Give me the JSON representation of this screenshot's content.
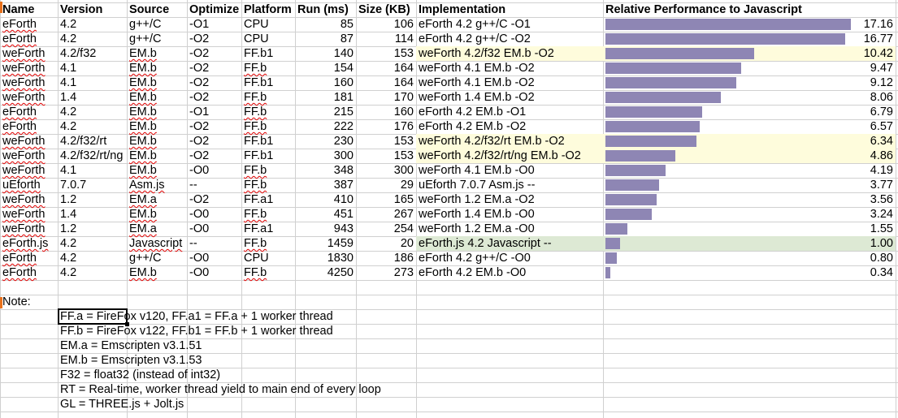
{
  "headers": {
    "name": "Name",
    "version": "Version",
    "source": "Source",
    "optimize": "Optimize",
    "platform": "Platform",
    "run": "Run (ms)",
    "size": "Size (KB)",
    "implementation": "Implementation",
    "relative": "Relative Performance to Javascript"
  },
  "rows": [
    {
      "name": "eForth",
      "version": "4.2",
      "source": "g++/C",
      "optimize": "-O1",
      "platform": "CPU",
      "run": "85",
      "size": "106",
      "impl": "eForth 4.2 g++/C -O1",
      "rel": "17.16",
      "rel_value": 17.16,
      "hl": ""
    },
    {
      "name": "eForth",
      "version": "4.2",
      "source": "g++/C",
      "optimize": "-O2",
      "platform": "CPU",
      "run": "87",
      "size": "114",
      "impl": "eForth 4.2 g++/C -O2",
      "rel": "16.77",
      "rel_value": 16.77,
      "hl": ""
    },
    {
      "name": "weForth",
      "version": "4.2/f32",
      "source": "EM.b",
      "optimize": "-O2",
      "platform": "FF.b1",
      "run": "140",
      "size": "153",
      "impl": "weForth 4.2/f32 EM.b -O2",
      "rel": "10.42",
      "rel_value": 10.42,
      "hl": "yellow"
    },
    {
      "name": "weForth",
      "version": "4.1",
      "source": "EM.b",
      "optimize": "-O2",
      "platform": "FF.b",
      "run": "154",
      "size": "164",
      "impl": "weForth 4.1 EM.b -O2",
      "rel": "9.47",
      "rel_value": 9.47,
      "hl": ""
    },
    {
      "name": "weForth",
      "version": "4.1",
      "source": "EM.b",
      "optimize": "-O2",
      "platform": "FF.b1",
      "run": "160",
      "size": "164",
      "impl": "weForth 4.1 EM.b -O2",
      "rel": "9.12",
      "rel_value": 9.12,
      "hl": ""
    },
    {
      "name": "weForth",
      "version": "1.4",
      "source": "EM.b",
      "optimize": "-O2",
      "platform": "FF.b",
      "run": "181",
      "size": "170",
      "impl": "weForth 1.4 EM.b -O2",
      "rel": "8.06",
      "rel_value": 8.06,
      "hl": ""
    },
    {
      "name": "eForth",
      "version": "4.2",
      "source": "EM.b",
      "optimize": "-O1",
      "platform": "FF.b",
      "run": "215",
      "size": "160",
      "impl": "eForth 4.2 EM.b -O1",
      "rel": "6.79",
      "rel_value": 6.79,
      "hl": ""
    },
    {
      "name": "eForth",
      "version": "4.2",
      "source": "EM.b",
      "optimize": "-O2",
      "platform": "FF.b",
      "run": "222",
      "size": "176",
      "impl": "eForth 4.2 EM.b -O2",
      "rel": "6.57",
      "rel_value": 6.57,
      "hl": ""
    },
    {
      "name": "weForth",
      "version": "4.2/f32/rt",
      "source": "EM.b",
      "optimize": "-O2",
      "platform": "FF.b1",
      "run": "230",
      "size": "153",
      "impl": "weForth 4.2/f32/rt EM.b -O2",
      "rel": "6.34",
      "rel_value": 6.34,
      "hl": "yellow"
    },
    {
      "name": "weForth",
      "version": "4.2/f32/rt/ng",
      "source": "EM.b",
      "optimize": "-O2",
      "platform": "FF.b1",
      "run": "300",
      "size": "153",
      "impl": "weForth 4.2/f32/rt/ng EM.b -O2",
      "rel": "4.86",
      "rel_value": 4.86,
      "hl": "yellow"
    },
    {
      "name": "weForth",
      "version": "4.1",
      "source": "EM.b",
      "optimize": "-O0",
      "platform": "FF.b",
      "run": "348",
      "size": "300",
      "impl": "weForth 4.1 EM.b -O0",
      "rel": "4.19",
      "rel_value": 4.19,
      "hl": ""
    },
    {
      "name": "uEforth",
      "version": "7.0.7",
      "source": "Asm.js",
      "optimize": "--",
      "platform": "FF.b",
      "run": "387",
      "size": "29",
      "impl": "uEforth 7.0.7 Asm.js --",
      "rel": "3.77",
      "rel_value": 3.77,
      "hl": ""
    },
    {
      "name": "weForth",
      "version": "1.2",
      "source": "EM.a",
      "optimize": "-O2",
      "platform": "FF.a1",
      "run": "410",
      "size": "165",
      "impl": "weForth 1.2 EM.a -O2",
      "rel": "3.56",
      "rel_value": 3.56,
      "hl": ""
    },
    {
      "name": "weForth",
      "version": "1.4",
      "source": "EM.b",
      "optimize": "-O0",
      "platform": "FF.b",
      "run": "451",
      "size": "267",
      "impl": "weForth 1.4 EM.b -O0",
      "rel": "3.24",
      "rel_value": 3.24,
      "hl": ""
    },
    {
      "name": "weForth",
      "version": "1.2",
      "source": "EM.a",
      "optimize": "-O0",
      "platform": "FF.a1",
      "run": "943",
      "size": "254",
      "impl": "weForth 1.2 EM.a -O0",
      "rel": "1.55",
      "rel_value": 1.55,
      "hl": ""
    },
    {
      "name": "eForth.js",
      "version": "4.2",
      "source": "Javascript",
      "optimize": "--",
      "platform": "FF.b",
      "run": "1459",
      "size": "20",
      "impl": "eForth.js 4.2 Javascript --",
      "rel": "1.00",
      "rel_value": 1.0,
      "hl": "green"
    },
    {
      "name": "eForth",
      "version": "4.2",
      "source": "g++/C",
      "optimize": "-O0",
      "platform": "CPU",
      "run": "1830",
      "size": "186",
      "impl": "eForth 4.2 g++/C -O0",
      "rel": "0.80",
      "rel_value": 0.8,
      "hl": ""
    },
    {
      "name": "eForth",
      "version": "4.2",
      "source": "EM.b",
      "optimize": "-O0",
      "platform": "FF.b",
      "run": "4250",
      "size": "273",
      "impl": "eForth 4.2 EM.b -O0",
      "rel": "0.34",
      "rel_value": 0.34,
      "hl": ""
    }
  ],
  "note_label": "Note:",
  "notes": [
    "FF.a = FireFox v120, FF.a1 = FF.a + 1 worker thread",
    "FF.b = FireFox v122, FF.b1 = FF.b + 1 worker thread",
    "EM.a = Emscripten v3.1.51",
    "EM.b = Emscripten v3.1.53",
    "F32 = float32 (instead of int32)",
    "RT = Real-time, worker thread yield to main end of every loop",
    "GL = THREE.js + Jolt.js"
  ],
  "colors": {
    "bar": "#8e86b4",
    "highlight_yellow": "#fefcdc",
    "highlight_green": "#dde9d4",
    "grid": "#d0d0d0",
    "spell_underline": "#e00000"
  }
}
